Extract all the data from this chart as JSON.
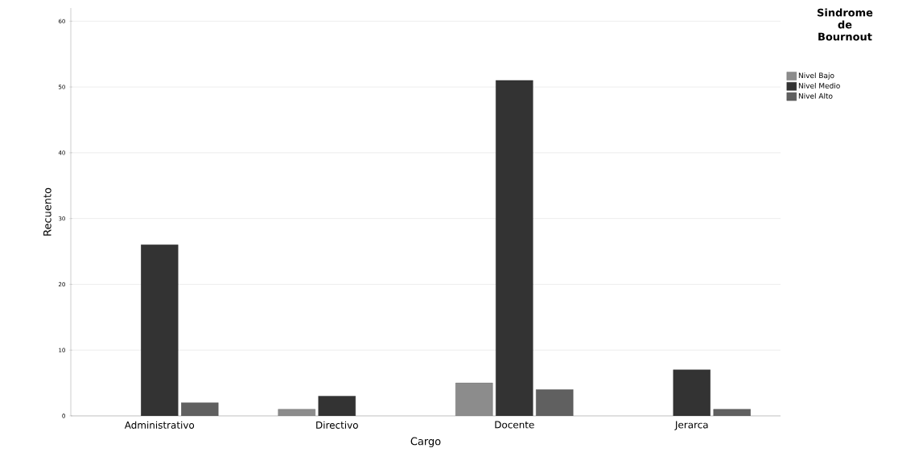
{
  "chart_data": {
    "type": "bar",
    "xlabel": "Cargo",
    "ylabel": "Recuento",
    "legend_title": "Sindrome de Bournout",
    "categories": [
      "Administrativo",
      "Directivo",
      "Docente",
      "Jerarca"
    ],
    "series": [
      {
        "name": "Nivel Bajo",
        "color": "#8c8c8c",
        "values": [
          null,
          1,
          5,
          null
        ]
      },
      {
        "name": "Nivel Medio",
        "color": "#333333",
        "values": [
          26,
          3,
          51,
          7
        ]
      },
      {
        "name": "Nivel Alto",
        "color": "#606060",
        "values": [
          2,
          null,
          4,
          1
        ]
      }
    ],
    "ylim": [
      0,
      62
    ],
    "yticks": [
      0,
      10,
      20,
      30,
      40,
      50,
      60
    ],
    "grid": "y",
    "legend": "top right"
  }
}
